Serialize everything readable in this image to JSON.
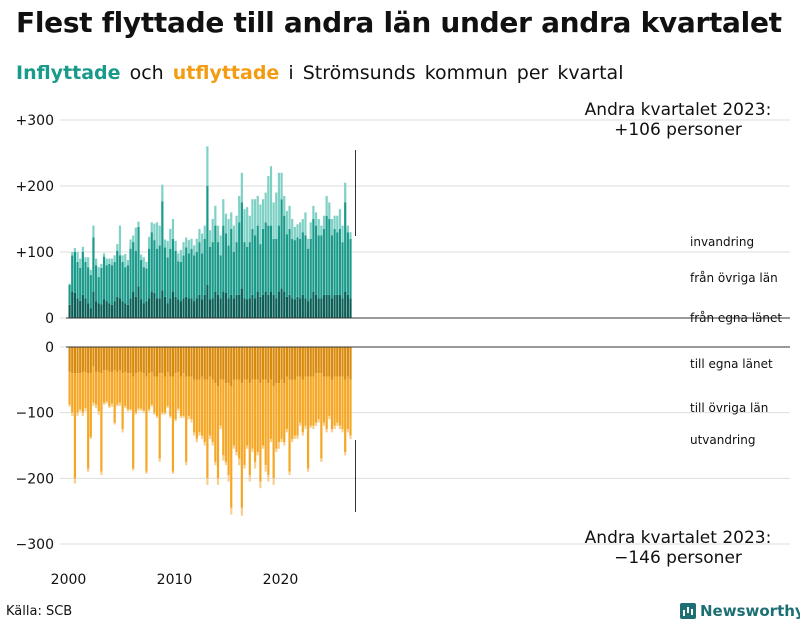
{
  "title": "Flest flyttade till andra län under andra kvartalet",
  "subtitle": {
    "in": "Inflyttade",
    "och": "och",
    "out": "utflyttade",
    "rest": "i Strömsunds kommun per kvartal"
  },
  "annotation_top": {
    "line1": "Andra kvartalet 2023:",
    "line2": "+106 personer"
  },
  "annotation_bottom": {
    "line1": "Andra kvartalet 2023:",
    "line2": "−146 personer"
  },
  "source": "Källa: SCB",
  "brand": "Newsworthy",
  "colors": {
    "inflow_local": "#0b5e56",
    "inflow_other": "#1a9a8a",
    "inflow_abroad": "#7fd1c6",
    "outflow_local": "#d98a0b",
    "outflow_other": "#f5a623",
    "outflow_abroad": "#f8cf8c",
    "grid": "#dddddd",
    "axis": "#333333"
  },
  "chart_data": {
    "type": "bar",
    "subtype": "stacked-diverging",
    "x_start_year": 2000,
    "periods_per_year": 4,
    "x_ticks": [
      "2000",
      "2010",
      "2020"
    ],
    "ylim_top": [
      0,
      300
    ],
    "ylim_bottom": [
      -300,
      0
    ],
    "y_ticks_top": [
      "+300",
      "+200",
      "+100",
      "0"
    ],
    "y_ticks_bottom": [
      "0",
      "−100",
      "−200",
      "−300"
    ],
    "categories_in": [
      "invandring",
      "från övriga län",
      "från egna länet"
    ],
    "categories_out": [
      "till egna länet",
      "till övriga län",
      "utvandring"
    ],
    "inflow": [
      [
        20,
        30,
        2
      ],
      [
        40,
        55,
        5
      ],
      [
        38,
        62,
        6
      ],
      [
        30,
        55,
        15
      ],
      [
        26,
        50,
        14
      ],
      [
        35,
        65,
        8
      ],
      [
        30,
        55,
        7
      ],
      [
        22,
        55,
        15
      ],
      [
        15,
        50,
        8
      ],
      [
        40,
        82,
        18
      ],
      [
        25,
        55,
        10
      ],
      [
        22,
        40,
        15
      ],
      [
        21,
        55,
        6
      ],
      [
        28,
        65,
        5
      ],
      [
        25,
        55,
        10
      ],
      [
        22,
        60,
        8
      ],
      [
        20,
        60,
        10
      ],
      [
        25,
        60,
        10
      ],
      [
        32,
        70,
        10
      ],
      [
        30,
        65,
        45
      ],
      [
        25,
        60,
        10
      ],
      [
        22,
        55,
        20
      ],
      [
        20,
        60,
        8
      ],
      [
        30,
        75,
        14
      ],
      [
        40,
        75,
        10
      ],
      [
        32,
        70,
        35
      ],
      [
        48,
        90,
        8
      ],
      [
        28,
        60,
        8
      ],
      [
        22,
        55,
        15
      ],
      [
        25,
        50,
        10
      ],
      [
        30,
        75,
        18
      ],
      [
        40,
        90,
        15
      ],
      [
        38,
        80,
        25
      ],
      [
        30,
        75,
        40
      ],
      [
        30,
        80,
        30
      ],
      [
        42,
        135,
        25
      ],
      [
        32,
        75,
        12
      ],
      [
        22,
        70,
        25
      ],
      [
        30,
        75,
        30
      ],
      [
        40,
        80,
        30
      ],
      [
        32,
        70,
        15
      ],
      [
        28,
        58,
        12
      ],
      [
        25,
        60,
        18
      ],
      [
        30,
        65,
        20
      ],
      [
        32,
        75,
        15
      ],
      [
        30,
        68,
        20
      ],
      [
        30,
        75,
        15
      ],
      [
        25,
        70,
        15
      ],
      [
        30,
        70,
        20
      ],
      [
        35,
        80,
        20
      ],
      [
        28,
        70,
        30
      ],
      [
        35,
        85,
        20
      ],
      [
        50,
        150,
        60
      ],
      [
        28,
        80,
        25
      ],
      [
        30,
        85,
        35
      ],
      [
        40,
        100,
        30
      ],
      [
        35,
        80,
        25
      ],
      [
        30,
        65,
        30
      ],
      [
        40,
        100,
        40
      ],
      [
        38,
        90,
        30
      ],
      [
        30,
        80,
        40
      ],
      [
        35,
        100,
        25
      ],
      [
        30,
        70,
        40
      ],
      [
        35,
        80,
        40
      ],
      [
        35,
        110,
        40
      ],
      [
        45,
        130,
        45
      ],
      [
        30,
        85,
        50
      ],
      [
        28,
        80,
        60
      ],
      [
        30,
        85,
        40
      ],
      [
        35,
        100,
        45
      ],
      [
        30,
        95,
        55
      ],
      [
        40,
        100,
        45
      ],
      [
        32,
        80,
        60
      ],
      [
        35,
        100,
        45
      ],
      [
        40,
        105,
        45
      ],
      [
        35,
        105,
        75
      ],
      [
        40,
        100,
        90
      ],
      [
        35,
        85,
        55
      ],
      [
        30,
        90,
        70
      ],
      [
        40,
        100,
        80
      ],
      [
        45,
        135,
        40
      ],
      [
        40,
        115,
        30
      ],
      [
        32,
        95,
        35
      ],
      [
        35,
        100,
        35
      ],
      [
        30,
        90,
        30
      ],
      [
        28,
        90,
        20
      ],
      [
        32,
        90,
        20
      ],
      [
        30,
        90,
        25
      ],
      [
        35,
        95,
        20
      ],
      [
        30,
        95,
        35
      ],
      [
        25,
        80,
        15
      ],
      [
        30,
        90,
        25
      ],
      [
        40,
        110,
        20
      ],
      [
        35,
        105,
        20
      ],
      [
        30,
        95,
        25
      ],
      [
        30,
        95,
        15
      ],
      [
        35,
        100,
        20
      ],
      [
        35,
        120,
        30
      ],
      [
        35,
        115,
        25
      ],
      [
        30,
        95,
        25
      ],
      [
        35,
        100,
        20
      ],
      [
        35,
        95,
        25
      ],
      [
        35,
        100,
        30
      ],
      [
        30,
        85,
        25
      ],
      [
        40,
        135,
        30
      ],
      [
        35,
        95,
        10
      ],
      [
        30,
        90,
        10
      ]
    ],
    "outflow": [
      [
        38,
        50,
        3
      ],
      [
        40,
        60,
        5
      ],
      [
        40,
        160,
        8
      ],
      [
        40,
        60,
        5
      ],
      [
        40,
        55,
        3
      ],
      [
        38,
        62,
        5
      ],
      [
        38,
        55,
        5
      ],
      [
        40,
        145,
        5
      ],
      [
        40,
        97,
        3
      ],
      [
        30,
        55,
        5
      ],
      [
        38,
        50,
        5
      ],
      [
        38,
        60,
        5
      ],
      [
        40,
        150,
        5
      ],
      [
        35,
        50,
        3
      ],
      [
        35,
        48,
        3
      ],
      [
        38,
        52,
        3
      ],
      [
        38,
        48,
        5
      ],
      [
        35,
        80,
        3
      ],
      [
        38,
        50,
        2
      ],
      [
        35,
        50,
        5
      ],
      [
        40,
        85,
        5
      ],
      [
        38,
        52,
        3
      ],
      [
        40,
        55,
        3
      ],
      [
        40,
        55,
        2
      ],
      [
        45,
        140,
        3
      ],
      [
        40,
        60,
        3
      ],
      [
        38,
        56,
        3
      ],
      [
        38,
        56,
        3
      ],
      [
        40,
        57,
        3
      ],
      [
        45,
        145,
        3
      ],
      [
        40,
        55,
        3
      ],
      [
        38,
        50,
        3
      ],
      [
        45,
        55,
        3
      ],
      [
        45,
        60,
        3
      ],
      [
        40,
        130,
        5
      ],
      [
        40,
        60,
        3
      ],
      [
        45,
        55,
        3
      ],
      [
        38,
        52,
        3
      ],
      [
        45,
        60,
        3
      ],
      [
        45,
        145,
        3
      ],
      [
        40,
        70,
        3
      ],
      [
        38,
        56,
        3
      ],
      [
        45,
        60,
        3
      ],
      [
        40,
        65,
        3
      ],
      [
        45,
        130,
        5
      ],
      [
        45,
        60,
        5
      ],
      [
        45,
        65,
        5
      ],
      [
        50,
        80,
        5
      ],
      [
        50,
        90,
        5
      ],
      [
        50,
        80,
        5
      ],
      [
        45,
        90,
        5
      ],
      [
        50,
        95,
        5
      ],
      [
        50,
        150,
        10
      ],
      [
        45,
        90,
        5
      ],
      [
        50,
        95,
        5
      ],
      [
        55,
        120,
        5
      ],
      [
        60,
        140,
        10
      ],
      [
        50,
        70,
        5
      ],
      [
        50,
        115,
        8
      ],
      [
        55,
        120,
        5
      ],
      [
        55,
        140,
        10
      ],
      [
        60,
        185,
        10
      ],
      [
        50,
        100,
        5
      ],
      [
        50,
        110,
        5
      ],
      [
        50,
        120,
        10
      ],
      [
        55,
        190,
        12
      ],
      [
        50,
        130,
        5
      ],
      [
        50,
        100,
        5
      ],
      [
        55,
        140,
        10
      ],
      [
        50,
        105,
        5
      ],
      [
        50,
        125,
        10
      ],
      [
        50,
        110,
        5
      ],
      [
        55,
        150,
        10
      ],
      [
        50,
        100,
        5
      ],
      [
        50,
        130,
        10
      ],
      [
        55,
        140,
        10
      ],
      [
        50,
        90,
        5
      ],
      [
        60,
        140,
        10
      ],
      [
        55,
        100,
        5
      ],
      [
        55,
        90,
        10
      ],
      [
        50,
        90,
        5
      ],
      [
        55,
        90,
        5
      ],
      [
        45,
        80,
        5
      ],
      [
        50,
        140,
        5
      ],
      [
        50,
        90,
        5
      ],
      [
        50,
        85,
        5
      ],
      [
        45,
        90,
        5
      ],
      [
        45,
        70,
        5
      ],
      [
        50,
        80,
        5
      ],
      [
        45,
        75,
        5
      ],
      [
        45,
        140,
        5
      ],
      [
        45,
        75,
        3
      ],
      [
        45,
        75,
        5
      ],
      [
        40,
        75,
        5
      ],
      [
        40,
        70,
        5
      ],
      [
        40,
        130,
        5
      ],
      [
        45,
        70,
        5
      ],
      [
        45,
        80,
        5
      ],
      [
        45,
        60,
        5
      ],
      [
        50,
        75,
        5
      ],
      [
        45,
        75,
        5
      ],
      [
        45,
        70,
        5
      ],
      [
        45,
        75,
        5
      ],
      [
        45,
        80,
        5
      ],
      [
        50,
        110,
        5
      ],
      [
        45,
        80,
        5
      ],
      [
        50,
        85,
        5
      ]
    ]
  }
}
